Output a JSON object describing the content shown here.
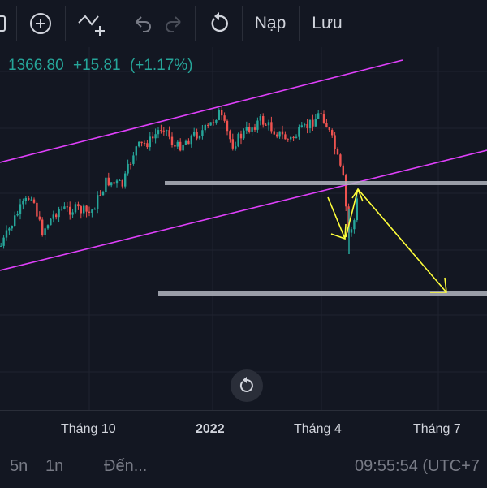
{
  "toolbar": {
    "partial_left_icon": "chart-icon",
    "add_icon": "plus-circle-icon",
    "indicator_icon": "add-indicator-icon",
    "undo_icon": "undo-icon",
    "redo_icon": "redo-icon",
    "reset_icon": "rotate-icon",
    "load_label": "Nạp",
    "save_label": "Lưu"
  },
  "quote": {
    "price": "1366.80",
    "change": "+15.81",
    "change_pct": "(+1.17%)",
    "color": "#26a69a"
  },
  "colors": {
    "up": "#26a69a",
    "down": "#ef5350",
    "channel": "#e040fb",
    "support": "#b2b5be",
    "arrow": "#ffff3b"
  },
  "chart_data": {
    "type": "candlestick",
    "x_ticks": [
      "Tháng 10",
      "2022",
      "Tháng 4",
      "Tháng 7"
    ],
    "annotations": [
      "ascending channel upper line",
      "ascending channel lower line",
      "horizontal support line",
      "horizontal target line",
      "projected path arrows"
    ]
  },
  "xaxis": {
    "labels": [
      "Tháng 10",
      "2022",
      "Tháng 4",
      "Tháng 7"
    ]
  },
  "bottom_bar": {
    "range_5y": "5n",
    "range_1y": "1n",
    "goto": "Đến...",
    "time": "09:55:54 (UTC+7"
  },
  "scroll_reset_icon": "rotate-icon"
}
